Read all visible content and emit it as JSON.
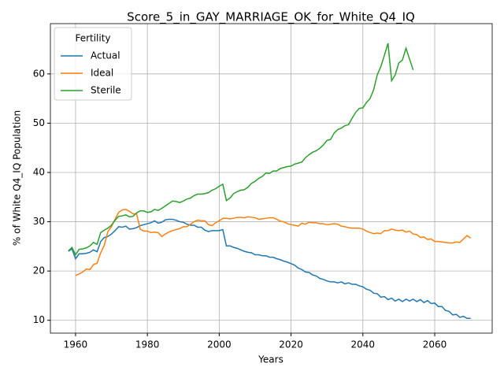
{
  "chart_data": {
    "type": "line",
    "title": "Score_5_in_GAY_MARRIAGE_OK_for_White_Q4_IQ",
    "xlabel": "Years",
    "ylabel": "% of White Q4_IQ Population",
    "legend_title": "Fertility",
    "legend_loc": "upper left",
    "grid": true,
    "x": [
      1958,
      1959,
      1960,
      1961,
      1962,
      1963,
      1964,
      1965,
      1966,
      1967,
      1968,
      1969,
      1970,
      1971,
      1972,
      1973,
      1974,
      1975,
      1976,
      1977,
      1978,
      1979,
      1980,
      1981,
      1982,
      1983,
      1984,
      1985,
      1986,
      1987,
      1988,
      1989,
      1990,
      1991,
      1992,
      1993,
      1994,
      1995,
      1996,
      1997,
      1998,
      1999,
      2000,
      2001,
      2002,
      2003,
      2004,
      2005,
      2006,
      2007,
      2008,
      2009,
      2010,
      2011,
      2012,
      2013,
      2014,
      2015,
      2016,
      2017,
      2018,
      2019,
      2020,
      2021,
      2022,
      2023,
      2024,
      2025,
      2026,
      2027,
      2028,
      2029,
      2030,
      2031,
      2032,
      2033,
      2034,
      2035,
      2036,
      2037,
      2038,
      2039,
      2040,
      2041,
      2042,
      2043,
      2044,
      2045,
      2046,
      2047,
      2048,
      2049,
      2050,
      2051,
      2052,
      2053,
      2054,
      2055,
      2056,
      2057,
      2058,
      2059,
      2060,
      2061,
      2062,
      2063,
      2064,
      2065,
      2066,
      2067,
      2068,
      2069,
      2070
    ],
    "series": [
      {
        "name": "Actual",
        "color": "#1f77b4",
        "values": [
          24,
          24.5,
          22.5,
          23.5,
          23.5,
          23.6,
          23.8,
          24.3,
          23.9,
          26,
          26.8,
          27,
          27.5,
          28.2,
          29,
          28.9,
          29.1,
          28.5,
          28.6,
          28.8,
          29.2,
          29.4,
          29.6,
          29.8,
          30.2,
          29.7,
          29.9,
          30.4,
          30.5,
          30.5,
          30.3,
          30,
          29.9,
          29.5,
          29.3,
          29.3,
          28.9,
          28.9,
          28.3,
          28,
          28.2,
          28.2,
          28.2,
          28.4,
          25.1,
          25.1,
          24.8,
          24.6,
          24.3,
          24,
          23.8,
          23.7,
          23.3,
          23.3,
          23.1,
          23.1,
          22.8,
          22.8,
          22.5,
          22.3,
          22,
          21.8,
          21.5,
          21.2,
          20.6,
          20.3,
          19.8,
          19.7,
          19.2,
          19,
          18.5,
          18.3,
          18,
          17.8,
          17.8,
          17.6,
          17.8,
          17.4,
          17.6,
          17.3,
          17.3,
          17,
          16.8,
          16.3,
          16.1,
          15.5,
          15.4,
          14.7,
          14.8,
          14.2,
          14.5,
          13.9,
          14.3,
          13.8,
          14.3,
          13.9,
          14.3,
          13.8,
          14.2,
          13.6,
          14,
          13.4,
          13.5,
          12.8,
          12.8,
          12,
          11.8,
          11.1,
          11.2,
          10.6,
          10.8,
          10.4,
          10.4
        ]
      },
      {
        "name": "Ideal",
        "color": "#ff7f0e",
        "values": [
          null,
          null,
          19.1,
          19.4,
          19.8,
          20.4,
          20.3,
          21.3,
          21.6,
          23.7,
          25.2,
          28,
          29,
          30.5,
          31.9,
          32.4,
          32.5,
          32.1,
          31.6,
          31.6,
          28.5,
          28.1,
          28.1,
          27.8,
          27.9,
          27.8,
          27,
          27.5,
          27.9,
          28.2,
          28.4,
          28.6,
          29,
          29,
          29.5,
          30,
          30.3,
          30.2,
          30.2,
          29.4,
          29.2,
          29.8,
          30.2,
          30.7,
          30.7,
          30.6,
          30.7,
          30.9,
          30.9,
          30.8,
          31,
          30.9,
          30.8,
          30.5,
          30.6,
          30.7,
          30.8,
          30.8,
          30.5,
          30.1,
          30,
          29.6,
          29.4,
          29.3,
          29.1,
          29.7,
          29.5,
          29.9,
          29.8,
          29.8,
          29.6,
          29.6,
          29.4,
          29.5,
          29.6,
          29.5,
          29.1,
          29,
          28.8,
          28.7,
          28.7,
          28.7,
          28.5,
          28.1,
          27.8,
          27.6,
          27.7,
          27.6,
          28.2,
          28.2,
          28.5,
          28.3,
          28.2,
          28.3,
          27.9,
          28.1,
          27.5,
          27.4,
          26.8,
          26.9,
          26.4,
          26.5,
          26,
          26,
          25.9,
          25.8,
          25.7,
          25.7,
          25.9,
          25.8,
          26.5,
          27.2,
          26.7
        ]
      },
      {
        "name": "Sterile",
        "color": "#2ca02c",
        "values": [
          24.1,
          24.8,
          23.3,
          24.4,
          24.5,
          24.7,
          25.1,
          25.8,
          25.4,
          27.8,
          28.3,
          28.7,
          29.3,
          30.3,
          31.1,
          31.2,
          31.4,
          31,
          31.1,
          31.8,
          32.2,
          32.2,
          31.9,
          32,
          32.5,
          32.3,
          32.7,
          33.2,
          33.7,
          34.2,
          34.1,
          33.9,
          34.2,
          34.6,
          34.8,
          35.3,
          35.6,
          35.6,
          35.7,
          35.9,
          36.4,
          36.7,
          37.2,
          37.6,
          34.3,
          34.8,
          35.7,
          36.1,
          36.4,
          36.5,
          37,
          37.8,
          38.2,
          38.8,
          39.2,
          39.9,
          39.8,
          40.3,
          40.3,
          40.8,
          41,
          41.2,
          41.3,
          41.7,
          41.9,
          42.1,
          43,
          43.6,
          44.1,
          44.4,
          44.9,
          45.6,
          46.5,
          46.7,
          48,
          48.7,
          49,
          49.5,
          49.7,
          51,
          52.2,
          53,
          53.1,
          54.2,
          55,
          56.8,
          59.8,
          61.5,
          63.8,
          66.2,
          58.6,
          59.8,
          62.2,
          62.8,
          65.2,
          63,
          60.8,
          null,
          null,
          null,
          null,
          null,
          null,
          null,
          null,
          null,
          null,
          null,
          null,
          null,
          null,
          null,
          null
        ]
      }
    ],
    "xlim": [
      1953,
      2076
    ],
    "ylim": [
      7.4,
      70.2
    ],
    "xticks": [
      1960,
      1980,
      2000,
      2020,
      2040,
      2060
    ],
    "yticks": [
      10,
      20,
      30,
      40,
      50,
      60
    ]
  }
}
